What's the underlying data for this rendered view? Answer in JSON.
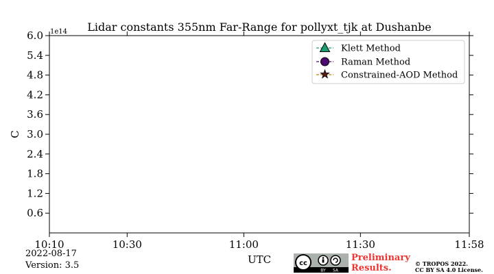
{
  "chart_data": {
    "type": "line",
    "title": "Lidar constants 355nm Far-Range for pollyxt_tjk at Dushanbe",
    "xlabel": "UTC",
    "ylabel": "C",
    "y_offset_label": "1e14",
    "xlim": [
      "10:10",
      "11:58"
    ],
    "ylim": [
      0.0,
      6.0
    ],
    "y_ticks": [
      0.6,
      1.2,
      1.8,
      2.4,
      3.0,
      3.6,
      4.2,
      4.8,
      5.4,
      6.0
    ],
    "y_tick_labels": [
      "0.6",
      "1.2",
      "1.8",
      "2.4",
      "3.0",
      "3.6",
      "4.2",
      "4.8",
      "5.4",
      "6.0"
    ],
    "x_ticks": [
      "10:10",
      "10:30",
      "11:00",
      "11:30",
      "11:58"
    ],
    "grid": false,
    "legend_placement": "top-right",
    "series": [
      {
        "name": "Klett Method",
        "marker": "triangle",
        "color": "#1a9e6e",
        "values": []
      },
      {
        "name": "Raman Method",
        "marker": "circle",
        "color": "#4b0a6e",
        "values": []
      },
      {
        "name": "Constrained-AOD Method",
        "marker": "star",
        "color": "#5a1a1a",
        "values": []
      }
    ]
  },
  "footer": {
    "date": "2022-08-17",
    "version": "Version: 3.5",
    "preliminary_line1": "Preliminary",
    "preliminary_line2": "Results.",
    "copyright_line1": "© TROPOS 2022.",
    "copyright_line2": "CC BY SA 4.0 License.",
    "license_badge": {
      "icon": "cc-by-sa-badge",
      "labels": [
        "BY",
        "SA"
      ]
    }
  }
}
